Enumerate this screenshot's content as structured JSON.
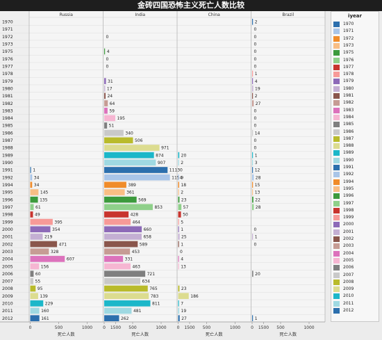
{
  "title": "金砖四国恐怖主义死亡人数比较",
  "chart_data": {
    "type": "bar",
    "orientation": "horizontal",
    "categories": [
      "1970",
      "1971",
      "1972",
      "1973",
      "1975",
      "1976",
      "1977",
      "1978",
      "1979",
      "1980",
      "1981",
      "1982",
      "1983",
      "1984",
      "1985",
      "1986",
      "1987",
      "1988",
      "1989",
      "1990",
      "1991",
      "1992",
      "1994",
      "1995",
      "1996",
      "1997",
      "1998",
      "1999",
      "2000",
      "2001",
      "2002",
      "2003",
      "2004",
      "2005",
      "2006",
      "2007",
      "2008",
      "2009",
      "2010",
      "2011",
      "2012"
    ],
    "xlabel": "死亡人数",
    "ylabel": "",
    "xlim": [
      0,
      1500
    ],
    "xticks": [
      "0",
      "500",
      "1000",
      "1500"
    ],
    "grid": true,
    "legend_title": "iyear",
    "legend_position": "right",
    "colors": [
      "#2c6fad",
      "#a9c5e8",
      "#f08c2a",
      "#f9be85",
      "#3c9a3c",
      "#8fd08a",
      "#c8342e",
      "#f79a98",
      "#8d6ab8",
      "#c4afd3",
      "#8a564c",
      "#c69c94",
      "#dc72bc",
      "#f6b6d2",
      "#7f7f7f",
      "#c9c9c9",
      "#b9bb2b",
      "#dcdc90",
      "#1cb7c9",
      "#9fd9e2",
      "#2c6fad",
      "#a9c5e8",
      "#f08c2a",
      "#f9be85",
      "#3c9a3c",
      "#8fd08a",
      "#c8342e",
      "#f79a98",
      "#8d6ab8",
      "#c4afd3",
      "#8a564c",
      "#c69c94",
      "#dc72bc",
      "#f6b6d2",
      "#7f7f7f",
      "#c9c9c9",
      "#b9bb2b",
      "#dcdc90",
      "#1cb7c9",
      "#9fd9e2",
      "#2c6fad"
    ],
    "series": [
      {
        "name": "Russia",
        "values": [
          null,
          null,
          null,
          null,
          null,
          null,
          null,
          null,
          null,
          null,
          null,
          null,
          null,
          null,
          null,
          null,
          null,
          null,
          null,
          null,
          1,
          34,
          34,
          145,
          135,
          61,
          49,
          395,
          354,
          219,
          471,
          328,
          607,
          156,
          60,
          55,
          95,
          139,
          229,
          160,
          161
        ]
      },
      {
        "name": "India",
        "values": [
          null,
          null,
          0,
          null,
          4,
          0,
          0,
          null,
          31,
          17,
          24,
          64,
          59,
          195,
          51,
          340,
          506,
          971,
          874,
          907,
          1113,
          1154,
          389,
          361,
          569,
          853,
          428,
          464,
          660,
          658,
          589,
          453,
          331,
          463,
          721,
          634,
          765,
          783,
          811,
          481,
          262
        ]
      },
      {
        "name": "China",
        "values": [
          null,
          null,
          null,
          null,
          null,
          null,
          null,
          null,
          null,
          null,
          null,
          null,
          null,
          null,
          null,
          null,
          null,
          null,
          20,
          2,
          0,
          9,
          18,
          2,
          23,
          57,
          50,
          5,
          1,
          25,
          1,
          0,
          4,
          13,
          null,
          null,
          23,
          186,
          7,
          19,
          27
        ]
      },
      {
        "name": "Brazil",
        "values": [
          2,
          0,
          0,
          0,
          0,
          0,
          0,
          1,
          4,
          19,
          2,
          27,
          0,
          0,
          0,
          14,
          0,
          0,
          1,
          3,
          12,
          28,
          15,
          13,
          22,
          28,
          null,
          null,
          0,
          1,
          0,
          null,
          null,
          null,
          20,
          null,
          null,
          null,
          null,
          null,
          1
        ]
      }
    ]
  }
}
